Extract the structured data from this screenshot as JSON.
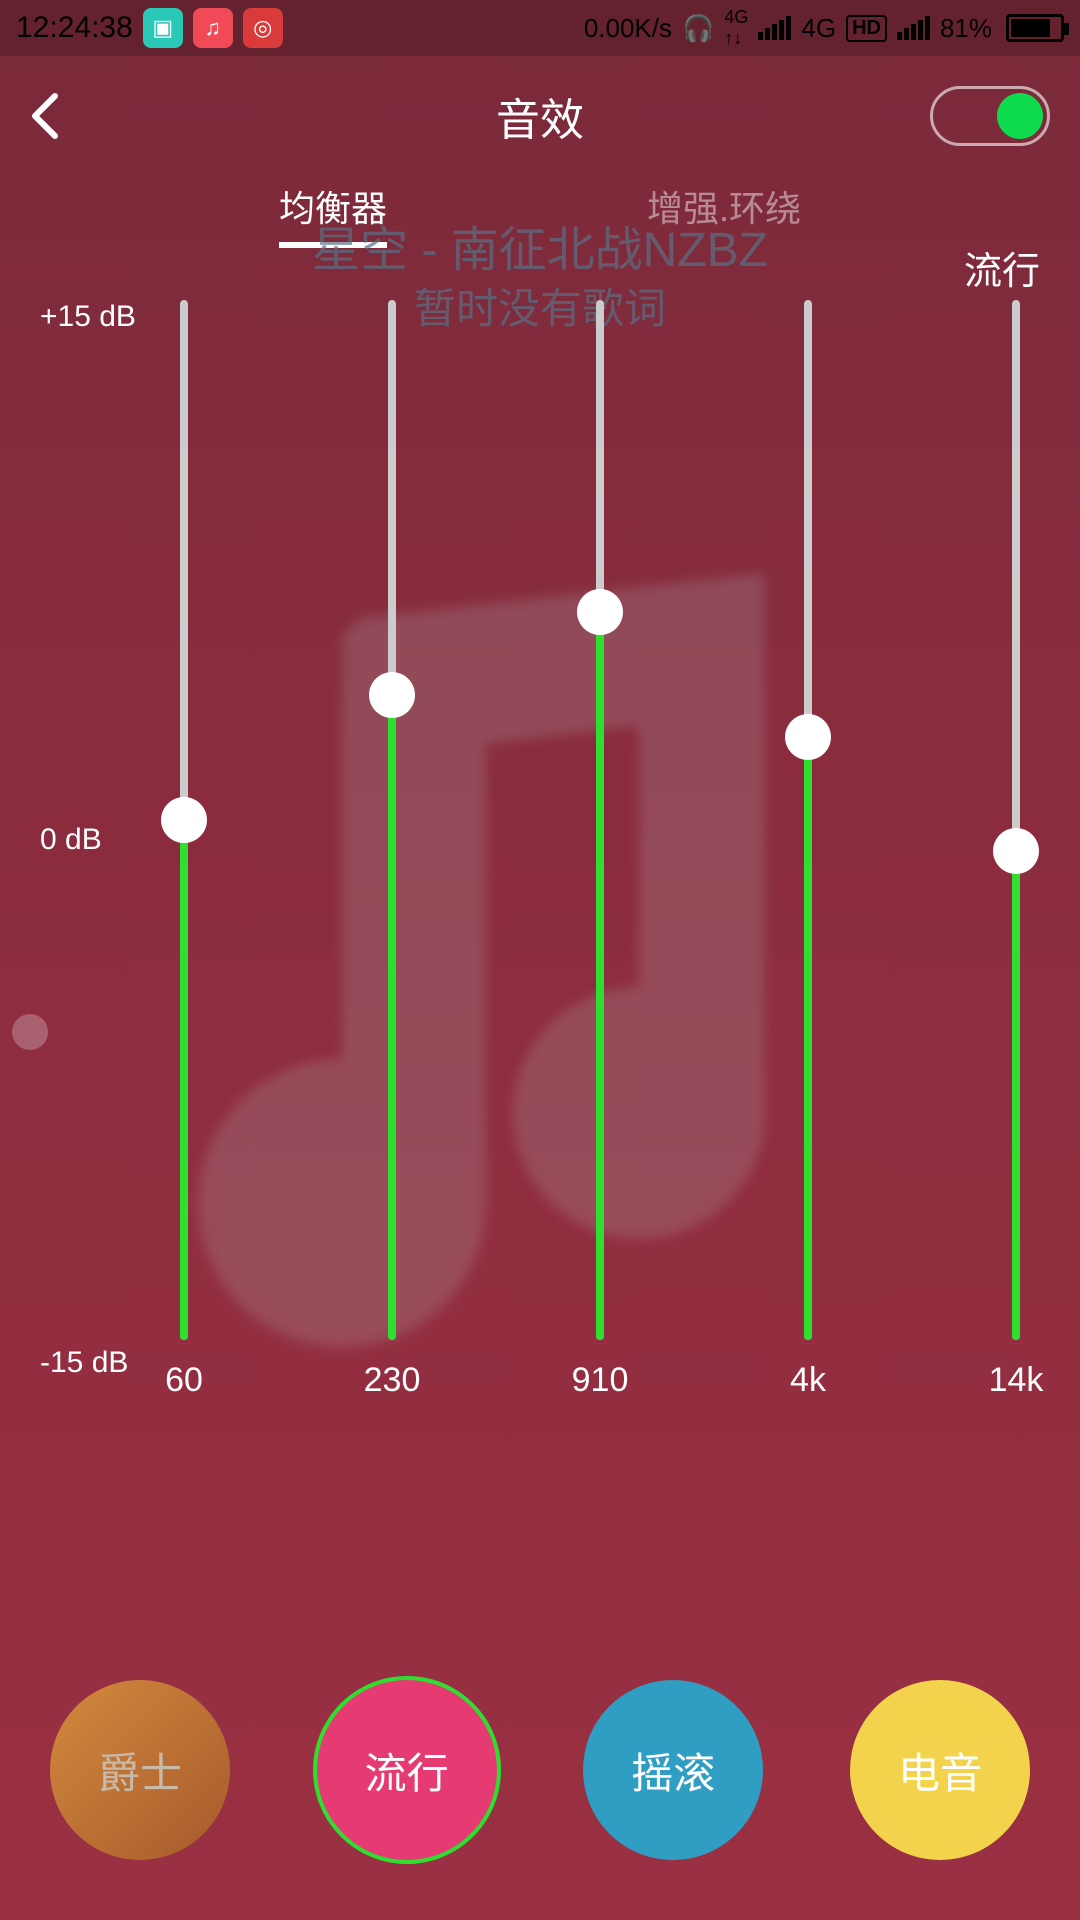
{
  "status_bar": {
    "time": "12:24:38",
    "net_speed": "0.00K/s",
    "net_label_4g": "4G",
    "hd": "HD",
    "battery_pct": "81%",
    "battery_fill_pct": 81,
    "icons": {
      "scan": "⌂",
      "music": "♫",
      "netease": "◎",
      "headphones": "🎧"
    }
  },
  "header": {
    "title": "音效",
    "toggle_on": true
  },
  "tabs": {
    "equalizer": "均衡器",
    "enhance": "增强.环绕",
    "active": "equalizer"
  },
  "ghost": {
    "song": "星空 - 南征北战NZBZ",
    "sub": "暂时没有歌词"
  },
  "current_preset_label": "流行",
  "equalizer": {
    "y_top": "+15 dB",
    "y_mid": "0 dB",
    "y_bot": "-15 dB",
    "bands": [
      {
        "freq": "60",
        "value_pct": 50
      },
      {
        "freq": "230",
        "value_pct": 62
      },
      {
        "freq": "910",
        "value_pct": 70
      },
      {
        "freq": "4k",
        "value_pct": 58
      },
      {
        "freq": "14k",
        "value_pct": 47
      }
    ],
    "track_color": "#cccccc",
    "fill_color": "#2de030",
    "thumb_color": "#ffffff"
  },
  "presets": [
    {
      "label": "爵士",
      "bg": "linear-gradient(135deg,#d38a3e,#a65a2b)",
      "text": "#c9b9a8"
    },
    {
      "label": "流行",
      "bg": "#e63a72",
      "text": "#ffffff",
      "selected": true
    },
    {
      "label": "摇滚",
      "bg": "#2f9ec2",
      "text": "#ffffff"
    },
    {
      "label": "电音",
      "bg": "#f3d34b",
      "text": "#ffffff"
    }
  ],
  "colors": {
    "bg_gradient_top": "#7a2a3a",
    "bg_gradient_bottom": "#9a3043",
    "accent_green": "#2de030"
  }
}
